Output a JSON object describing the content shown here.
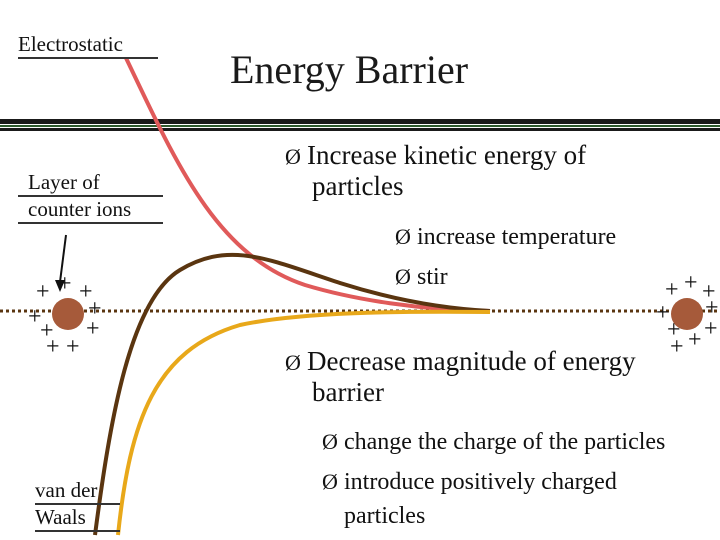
{
  "title": "Energy Barrier",
  "labels": {
    "electrostatic": "Electrostatic",
    "layer_line1": "Layer of",
    "layer_line2": "counter ions",
    "vdw_line1": "van der",
    "vdw_line2": "Waals"
  },
  "bullets": [
    {
      "text_line1": "Increase kinetic energy of",
      "text_line2": "particles",
      "subs": [
        "increase temperature",
        "stir"
      ]
    },
    {
      "text_line1": "Decrease magnitude of energy",
      "text_line2": "barrier",
      "subs": [
        "change the charge of the particles",
        "introduce positively charged",
        "particles"
      ]
    }
  ],
  "bullet_glyph": "Ø",
  "charge_symbol": "+",
  "colors": {
    "electrostatic_curve": "#e05a5a",
    "net_curve": "#5a3510",
    "vdw_curve": "#e8a81a",
    "particle": "#a65a3a",
    "rule_dark": "#1a1a1a",
    "rule_green": "#2d5a2d"
  }
}
